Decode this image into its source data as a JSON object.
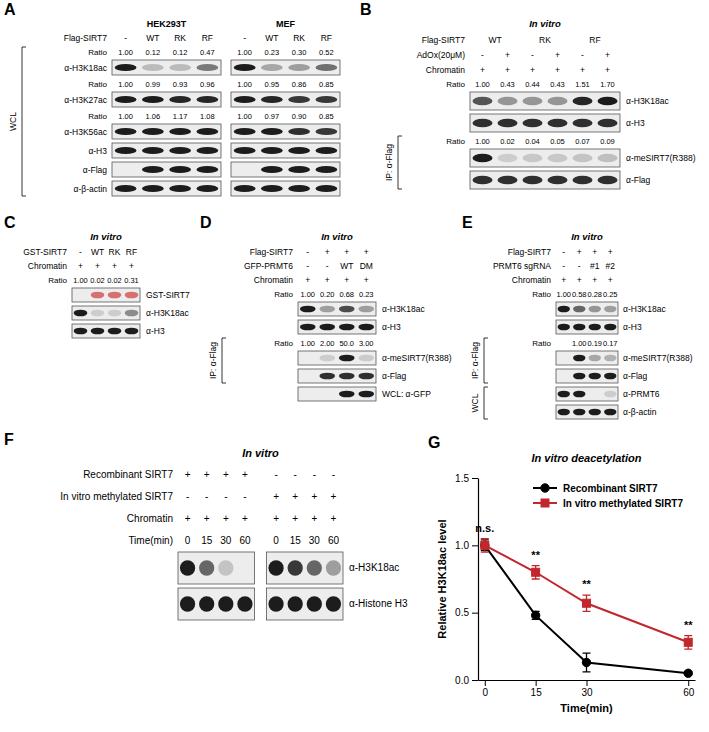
{
  "panels": [
    {
      "label": "A",
      "group_titles": [
        "HEK293T",
        "MEF"
      ],
      "conditions": [
        {
          "name": "Flag-SIRT7",
          "values": [
            [
              "-",
              "WT",
              "RK",
              "RF"
            ],
            [
              "-",
              "WT",
              "RK",
              "RF"
            ]
          ]
        }
      ],
      "sections": [
        {
          "bracket": "WCL",
          "blots": [
            {
              "name": "α-H3K18ac",
              "ratio_label": "Ratio",
              "ratio": [
                [
                  "1.00",
                  "0.12",
                  "0.12",
                  "0.47"
                ],
                [
                  "1.00",
                  "0.23",
                  "0.30",
                  "0.52"
                ]
              ],
              "bands": [
                [
                  1,
                  0.15,
                  0.15,
                  0.5
                ],
                [
                  1,
                  0.25,
                  0.3,
                  0.55
                ]
              ]
            },
            {
              "name": "α-H3K27ac",
              "ratio_label": "Ratio",
              "ratio": [
                [
                  "1.00",
                  "0.99",
                  "0.93",
                  "0.96"
                ],
                [
                  "1.00",
                  "0.95",
                  "0.86",
                  "0.85"
                ]
              ],
              "bands": [
                [
                  1,
                  1,
                  0.95,
                  0.95
                ],
                [
                  1,
                  0.95,
                  0.85,
                  0.85
                ]
              ]
            },
            {
              "name": "α-H3K56ac",
              "ratio_label": "Ratio",
              "ratio": [
                [
                  "1.00",
                  "1.06",
                  "1.17",
                  "1.08"
                ],
                [
                  "1.00",
                  "0.97",
                  "0.90",
                  "0.85"
                ]
              ],
              "bands": [
                [
                  1,
                  1,
                  1,
                  1
                ],
                [
                  1,
                  1,
                  0.9,
                  0.85
                ]
              ]
            },
            {
              "name": "α-H3",
              "bands": [
                [
                  1,
                  1,
                  1,
                  1
                ],
                [
                  1,
                  1,
                  1,
                  1
                ]
              ]
            },
            {
              "name": "α-Flag",
              "bands": [
                [
                  0,
                  1,
                  1,
                  1
                ],
                [
                  0,
                  1,
                  1,
                  1
                ]
              ]
            },
            {
              "name": "α-β-actin",
              "bands": [
                [
                  1,
                  1,
                  1,
                  1
                ],
                [
                  1,
                  1,
                  1,
                  1
                ]
              ]
            }
          ]
        }
      ]
    },
    {
      "label": "B",
      "title": "In vitro",
      "conditions": [
        {
          "name": "Flag-SIRT7",
          "values": [
            [
              "WT",
              null,
              "RK",
              null,
              "RF",
              null
            ]
          ]
        },
        {
          "name": "AdOx(20μM)",
          "values": [
            [
              "-",
              "+",
              "-",
              "+",
              "-",
              "+"
            ]
          ]
        },
        {
          "name": "Chromatin",
          "values": [
            [
              "+",
              "+",
              "+",
              "+",
              "+",
              "+"
            ]
          ]
        }
      ],
      "sections": [
        {
          "blots": [
            {
              "name": "α-H3K18ac",
              "ratio_label": "Ratio",
              "ratio": [
                [
                  "1.00",
                  "0.43",
                  "0.44",
                  "0.43",
                  "1.51",
                  "1.70"
                ]
              ],
              "bands": [
                [
                  0.7,
                  0.35,
                  0.35,
                  0.35,
                  0.95,
                  1
                ]
              ]
            },
            {
              "name": "α-H3",
              "bands": [
                [
                  0.9,
                  0.9,
                  0.9,
                  0.9,
                  0.9,
                  0.9
                ]
              ]
            }
          ]
        },
        {
          "bracket": "IP: α-Flag",
          "blots": [
            {
              "name": "α-meSIRT7(R388)",
              "ratio_label": "Ratio",
              "ratio": [
                [
                  "1.00",
                  "0.02",
                  "0.04",
                  "0.05",
                  "0.07",
                  "0.09"
                ]
              ],
              "bands": [
                [
                  1,
                  0.05,
                  0.08,
                  0.08,
                  0.1,
                  0.12
                ]
              ]
            },
            {
              "name": "α-Flag",
              "bands": [
                [
                  0.9,
                  0.9,
                  0.9,
                  0.9,
                  0.9,
                  0.9
                ]
              ]
            }
          ]
        }
      ]
    },
    {
      "label": "C",
      "title": "In vitro",
      "conditions": [
        {
          "name": "GST-SIRT7",
          "values": [
            [
              "-",
              "WT",
              "RK",
              "RF"
            ]
          ]
        },
        {
          "name": "Chromatin",
          "values": [
            [
              "+",
              "+",
              "+",
              "+"
            ]
          ]
        }
      ],
      "sections": [
        {
          "blots": [
            {
              "name": "GST-SIRT7",
              "color": "#d46a6a",
              "ratio_label": "Ratio",
              "ratio": [
                [
                  "1.00",
                  "0.02",
                  "0.02",
                  "0.31"
                ]
              ],
              "bands": [
                [
                  0,
                  1,
                  1,
                  1
                ]
              ]
            },
            {
              "name": "α-H3K18ac",
              "bands": [
                [
                  1,
                  0.05,
                  0.05,
                  0.4
                ]
              ]
            },
            {
              "name": "α-H3",
              "bands": [
                [
                  1,
                  1,
                  1,
                  1
                ]
              ]
            }
          ]
        }
      ]
    },
    {
      "label": "D",
      "title": "In vitro",
      "conditions": [
        {
          "name": "Flag-SIRT7",
          "values": [
            [
              "-",
              "+",
              "+",
              "+"
            ]
          ]
        },
        {
          "name": "GFP-PRMT6",
          "values": [
            [
              "-",
              "-",
              "WT",
              "DM"
            ]
          ]
        },
        {
          "name": "Chromatin",
          "values": [
            [
              "+",
              "+",
              "+",
              "+"
            ]
          ]
        }
      ],
      "sections": [
        {
          "blots": [
            {
              "name": "α-H3K18ac",
              "ratio_label": "Ratio",
              "ratio": [
                [
                  "1.00",
                  "0.20",
                  "0.68",
                  "0.23"
                ]
              ],
              "bands": [
                [
                  1,
                  0.3,
                  0.75,
                  0.3
                ]
              ]
            },
            {
              "name": "α-H3",
              "bands": [
                [
                  1,
                  1,
                  1,
                  1
                ]
              ]
            }
          ]
        },
        {
          "bracket": "IP: α-Flag",
          "blots": [
            {
              "name": "α-meSIRT7(R388)",
              "ratio_label": "Ratio",
              "ratio": [
                [
                  "1.00",
                  "2.00",
                  "50.0",
                  "3.00"
                ]
              ],
              "bands": [
                [
                  0,
                  0.05,
                  1,
                  0.06
                ]
              ]
            },
            {
              "name": "α-Flag",
              "bands": [
                [
                  0,
                  0.9,
                  0.9,
                  0.9
                ]
              ]
            }
          ]
        },
        {
          "blots": [
            {
              "name": "WCL: α-GFP",
              "bands": [
                [
                  0,
                  0,
                  1,
                  1
                ]
              ]
            }
          ]
        }
      ]
    },
    {
      "label": "E",
      "title": "In vitro",
      "conditions": [
        {
          "name": "Flag-SIRT7",
          "values": [
            [
              "-",
              "+",
              "+",
              "+"
            ]
          ]
        },
        {
          "name": "PRMT6 sgRNA",
          "values": [
            [
              "-",
              "-",
              "#1",
              "#2"
            ]
          ]
        },
        {
          "name": "Chromatin",
          "values": [
            [
              "+",
              "+",
              "+",
              "+"
            ]
          ]
        }
      ],
      "sections": [
        {
          "blots": [
            {
              "name": "α-H3K18ac",
              "ratio_label": "Ratio",
              "ratio": [
                [
                  "1.00",
                  "0.58",
                  "0.28",
                  "0.25"
                ]
              ],
              "bands": [
                [
                  1,
                  0.6,
                  0.35,
                  0.3
                ]
              ]
            },
            {
              "name": "α-H3",
              "bands": [
                [
                  1,
                  1,
                  1,
                  1
                ]
              ]
            }
          ]
        },
        {
          "bracket": "IP: α-Flag",
          "blots": [
            {
              "name": "α-meSIRT7(R388)",
              "ratio_label": "Ratio",
              "ratio": [
                [
                  null,
                  "1.00",
                  "0.19",
                  "0.17"
                ]
              ],
              "bands": [
                [
                  0,
                  1,
                  0.25,
                  0.2
                ]
              ]
            },
            {
              "name": "α-Flag",
              "bands": [
                [
                  0,
                  1,
                  1,
                  1
                ]
              ]
            }
          ]
        },
        {
          "bracket": "WCL",
          "blots": [
            {
              "name": "α-PRMT6",
              "bands": [
                [
                  1,
                  1,
                  0,
                  0.05
                ]
              ]
            },
            {
              "name": "α-β-actin",
              "bands": [
                [
                  1,
                  1,
                  1,
                  1
                ]
              ]
            }
          ]
        }
      ]
    },
    {
      "label": "F",
      "title": "In vitro",
      "conditions": [
        {
          "name": "Recombinant SIRT7",
          "values": [
            [
              "+",
              "+",
              "+",
              "+"
            ],
            [
              "-",
              "-",
              "-",
              "-"
            ]
          ]
        },
        {
          "name": "In vitro methylated SIRT7",
          "values": [
            [
              "-",
              "-",
              "-",
              "-"
            ],
            [
              "+",
              "+",
              "+",
              "+"
            ]
          ]
        },
        {
          "name": "Chromatin",
          "values": [
            [
              "+",
              "+",
              "+",
              "+"
            ],
            [
              "+",
              "+",
              "+",
              "+"
            ]
          ]
        },
        {
          "name": "Time(min)",
          "values": [
            [
              "0",
              "15",
              "30",
              "60"
            ],
            [
              "0",
              "15",
              "30",
              "60"
            ]
          ]
        }
      ],
      "sections": [
        {
          "blots": [
            {
              "name": "α-H3K18ac",
              "bands": [
                [
                  1,
                  0.6,
                  0.1,
                  0
                ],
                [
                  1,
                  0.85,
                  0.6,
                  0.3
                ]
              ]
            },
            {
              "name": "α-Histone H3",
              "bands": [
                [
                  1,
                  1,
                  1,
                  1
                ],
                [
                  1,
                  1,
                  1,
                  1
                ]
              ]
            }
          ]
        }
      ]
    }
  ],
  "chart_data": {
    "type": "line",
    "panel_label": "G",
    "title": "In vitro deacetylation",
    "x_label": "Time(min)",
    "y_label": "Relative H3K18ac level",
    "x": [
      0,
      15,
      30,
      60
    ],
    "xlim": [
      -2,
      62
    ],
    "xticks": [
      0,
      15,
      30,
      60
    ],
    "ylim": [
      0,
      1.5
    ],
    "yticks": [
      {
        "value": 0,
        "label": "0.0"
      },
      {
        "value": 0.5,
        "label": "0.5"
      },
      {
        "value": 1,
        "label": "1.0"
      },
      {
        "value": 1.5,
        "label": "1.5"
      }
    ],
    "legend": "upper right",
    "series": [
      {
        "name": "Recombinant SIRT7",
        "color": "#000000",
        "marker": "circle",
        "values": [
          1,
          0.48,
          0.13,
          0.05
        ],
        "errors": [
          0.04,
          0.03,
          0.07,
          0.01
        ]
      },
      {
        "name": "In vitro methylated SIRT7",
        "color": "#c1272d",
        "marker": "square",
        "values": [
          1,
          0.8,
          0.57,
          0.28
        ],
        "errors": [
          0.05,
          0.05,
          0.06,
          0.05
        ]
      }
    ],
    "annotations": [
      {
        "text": "n.s.",
        "x": 0
      },
      {
        "text": "**",
        "x": 15
      },
      {
        "text": "**",
        "x": 30
      },
      {
        "text": "**",
        "x": 60
      }
    ]
  }
}
